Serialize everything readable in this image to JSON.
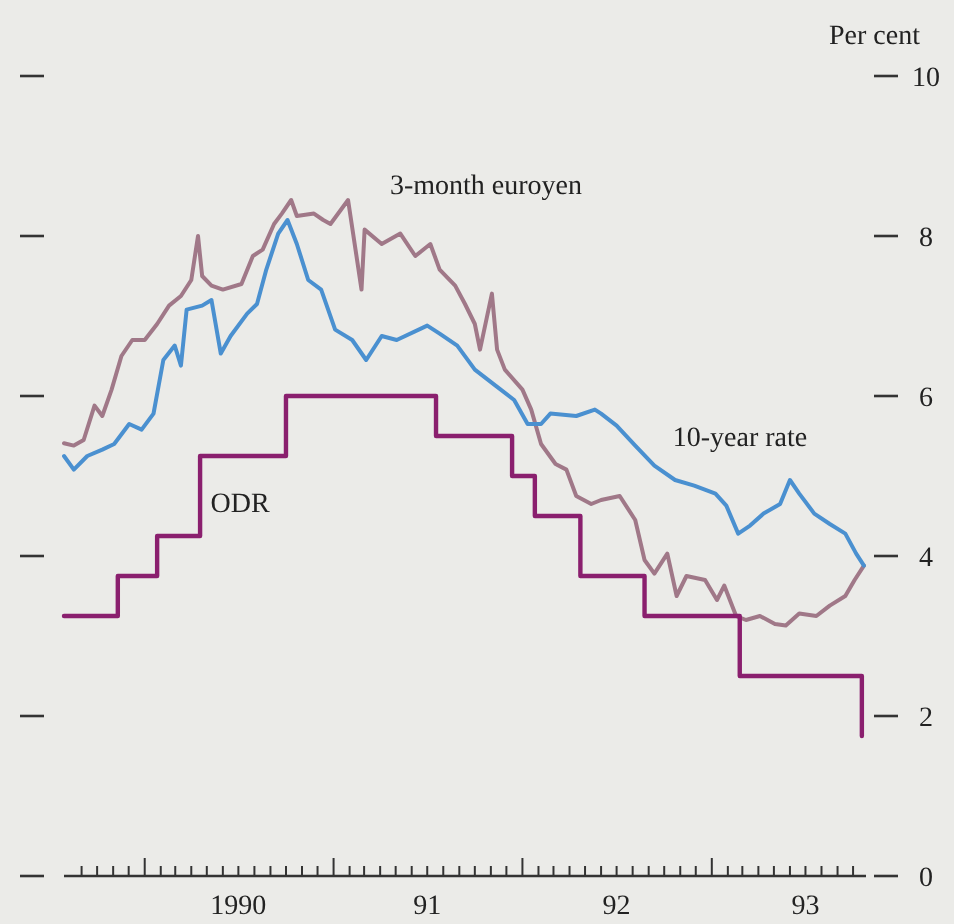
{
  "chart_data": {
    "type": "line",
    "ylabel": "Per cent",
    "xlim": [
      "1989-07-29",
      "1993-10-26"
    ],
    "ylim": [
      0,
      10
    ],
    "yticks": [
      0,
      2,
      4,
      6,
      8,
      10
    ],
    "xticks": [
      {
        "value": "1989-09-01",
        "label": null
      },
      {
        "value": "1989-10-01",
        "label": null
      },
      {
        "value": "1989-11-01",
        "label": null
      },
      {
        "value": "1989-12-01",
        "label": null
      },
      {
        "value": "1990-01-01",
        "label": null
      },
      {
        "value": "1990-02-01",
        "label": null
      },
      {
        "value": "1990-03-01",
        "label": null
      },
      {
        "value": "1990-04-01",
        "label": null
      },
      {
        "value": "1990-05-01",
        "label": null
      },
      {
        "value": "1990-06-01",
        "label": null
      },
      {
        "value": "1990-07-01",
        "label": "1990"
      },
      {
        "value": "1990-08-01",
        "label": null
      },
      {
        "value": "1990-09-01",
        "label": null
      },
      {
        "value": "1990-10-01",
        "label": null
      },
      {
        "value": "1990-11-01",
        "label": null
      },
      {
        "value": "1990-12-01",
        "label": null
      },
      {
        "value": "1991-01-01",
        "label": null
      },
      {
        "value": "1991-02-01",
        "label": null
      },
      {
        "value": "1991-03-01",
        "label": null
      },
      {
        "value": "1991-04-01",
        "label": null
      },
      {
        "value": "1991-05-01",
        "label": null
      },
      {
        "value": "1991-06-01",
        "label": null
      },
      {
        "value": "1991-07-01",
        "label": "91"
      },
      {
        "value": "1991-08-01",
        "label": null
      },
      {
        "value": "1991-09-01",
        "label": null
      },
      {
        "value": "1991-10-01",
        "label": null
      },
      {
        "value": "1991-11-01",
        "label": null
      },
      {
        "value": "1991-12-01",
        "label": null
      },
      {
        "value": "1992-01-01",
        "label": null
      },
      {
        "value": "1992-02-01",
        "label": null
      },
      {
        "value": "1992-03-01",
        "label": null
      },
      {
        "value": "1992-04-01",
        "label": null
      },
      {
        "value": "1992-05-01",
        "label": null
      },
      {
        "value": "1992-06-01",
        "label": null
      },
      {
        "value": "1992-07-01",
        "label": "92"
      },
      {
        "value": "1992-08-01",
        "label": null
      },
      {
        "value": "1992-09-01",
        "label": null
      },
      {
        "value": "1992-10-01",
        "label": null
      },
      {
        "value": "1992-11-01",
        "label": null
      },
      {
        "value": "1992-12-01",
        "label": null
      },
      {
        "value": "1993-01-01",
        "label": null
      },
      {
        "value": "1993-02-01",
        "label": null
      },
      {
        "value": "1993-03-01",
        "label": null
      },
      {
        "value": "1993-04-01",
        "label": null
      },
      {
        "value": "1993-05-01",
        "label": null
      },
      {
        "value": "1993-06-01",
        "label": null
      },
      {
        "value": "1993-07-01",
        "label": "93"
      },
      {
        "value": "1993-08-01",
        "label": null
      },
      {
        "value": "1993-09-01",
        "label": null
      },
      {
        "value": "1993-10-01",
        "label": null
      }
    ],
    "grid": false,
    "legend": false,
    "marker": "none",
    "line_style": "solid",
    "series": [
      {
        "name": "3-month euroyen",
        "color": "#a07888",
        "x": [
          "1989-07-29",
          "1989-08-17",
          "1989-09-05",
          "1989-09-26",
          "1989-10-11",
          "1989-10-29",
          "1989-11-17",
          "1989-12-08",
          "1990-01-01",
          "1990-01-25",
          "1990-02-17",
          "1990-03-12",
          "1990-04-01",
          "1990-04-14",
          "1990-04-22",
          "1990-05-10",
          "1990-06-01",
          "1990-07-07",
          "1990-07-29",
          "1990-08-17",
          "1990-09-08",
          "1990-09-23",
          "1990-10-11",
          "1990-10-22",
          "1990-11-24",
          "1990-12-12",
          "1990-12-26",
          "1991-01-29",
          "1991-02-24",
          "1991-03-02",
          "1991-04-04",
          "1991-05-10",
          "1991-06-08",
          "1991-07-07",
          "1991-07-25",
          "1991-08-24",
          "1991-09-12",
          "1991-10-01",
          "1991-10-11",
          "1991-11-03",
          "1991-11-13",
          "1991-11-28",
          "1992-01-01",
          "1992-01-18",
          "1992-02-06",
          "1992-03-05",
          "1992-03-26",
          "1992-04-14",
          "1992-05-13",
          "1992-06-01",
          "1992-07-07",
          "1992-08-06",
          "1992-08-24",
          "1992-09-12",
          "1992-10-07",
          "1992-10-25",
          "1992-11-13",
          "1992-12-19",
          "1993-01-11",
          "1993-01-25",
          "1993-02-17",
          "1993-03-08",
          "1993-04-04",
          "1993-05-03",
          "1993-05-24",
          "1993-06-19",
          "1993-07-22",
          "1993-08-17",
          "1993-09-16",
          "1993-10-04",
          "1993-10-22"
        ],
        "values": [
          5.41,
          5.38,
          5.45,
          5.88,
          5.75,
          6.08,
          6.5,
          6.7,
          6.7,
          6.9,
          7.13,
          7.25,
          7.45,
          8.0,
          7.5,
          7.38,
          7.33,
          7.4,
          7.75,
          7.83,
          8.15,
          8.28,
          8.45,
          8.25,
          8.28,
          8.2,
          8.15,
          8.45,
          7.33,
          8.08,
          7.9,
          8.03,
          7.75,
          7.9,
          7.58,
          7.38,
          7.15,
          6.9,
          6.58,
          7.28,
          6.58,
          6.33,
          6.08,
          5.83,
          5.4,
          5.15,
          5.08,
          4.75,
          4.65,
          4.7,
          4.75,
          4.45,
          3.95,
          3.78,
          4.03,
          3.5,
          3.75,
          3.7,
          3.45,
          3.63,
          3.25,
          3.2,
          3.25,
          3.15,
          3.13,
          3.28,
          3.25,
          3.38,
          3.5,
          3.7,
          3.88
        ]
      },
      {
        "name": "10-year rate",
        "color": "#4a90d0",
        "x": [
          "1989-07-29",
          "1989-08-17",
          "1989-09-12",
          "1989-10-11",
          "1989-11-03",
          "1989-12-02",
          "1989-12-26",
          "1990-01-18",
          "1990-02-06",
          "1990-02-28",
          "1990-03-12",
          "1990-03-23",
          "1990-04-22",
          "1990-05-10",
          "1990-05-28",
          "1990-06-16",
          "1990-07-18",
          "1990-08-06",
          "1990-08-24",
          "1990-09-16",
          "1990-10-04",
          "1990-10-22",
          "1990-11-13",
          "1990-12-08",
          "1991-01-04",
          "1991-02-06",
          "1991-03-05",
          "1991-04-04",
          "1991-05-03",
          "1991-07-01",
          "1991-07-25",
          "1991-08-28",
          "1991-10-01",
          "1991-11-10",
          "1991-12-16",
          "1992-01-11",
          "1992-02-06",
          "1992-02-24",
          "1992-04-14",
          "1992-05-20",
          "1992-06-01",
          "1992-07-01",
          "1992-08-06",
          "1992-09-12",
          "1992-10-22",
          "1992-11-28",
          "1993-01-08",
          "1993-01-29",
          "1993-02-21",
          "1993-03-16",
          "1993-04-11",
          "1993-05-13",
          "1993-06-01",
          "1993-06-19",
          "1993-07-18",
          "1993-08-17",
          "1993-09-16",
          "1993-10-07",
          "1993-10-22"
        ],
        "values": [
          5.25,
          5.08,
          5.25,
          5.33,
          5.4,
          5.65,
          5.58,
          5.78,
          6.45,
          6.63,
          6.38,
          7.08,
          7.13,
          7.2,
          6.53,
          6.75,
          7.03,
          7.15,
          7.58,
          8.03,
          8.2,
          7.9,
          7.45,
          7.33,
          6.83,
          6.7,
          6.45,
          6.75,
          6.7,
          6.88,
          6.78,
          6.63,
          6.33,
          6.13,
          5.95,
          5.65,
          5.65,
          5.78,
          5.75,
          5.83,
          5.78,
          5.63,
          5.38,
          5.13,
          4.95,
          4.88,
          4.78,
          4.63,
          4.28,
          4.38,
          4.53,
          4.65,
          4.95,
          4.78,
          4.53,
          4.4,
          4.28,
          4.03,
          3.88
        ]
      },
      {
        "name": "ODR",
        "type": "step",
        "color": "#8a1f6e",
        "x": [
          "1989-07-29",
          "1989-11-10",
          "1990-01-25",
          "1990-04-18",
          "1990-10-01",
          "1991-07-18",
          "1991-12-12",
          "1992-01-25",
          "1992-04-22",
          "1992-08-24",
          "1993-02-24",
          "1993-10-18"
        ],
        "values": [
          3.25,
          3.75,
          4.25,
          5.25,
          6.0,
          5.5,
          5.0,
          4.5,
          3.75,
          3.25,
          2.5,
          1.75
        ]
      }
    ]
  }
}
